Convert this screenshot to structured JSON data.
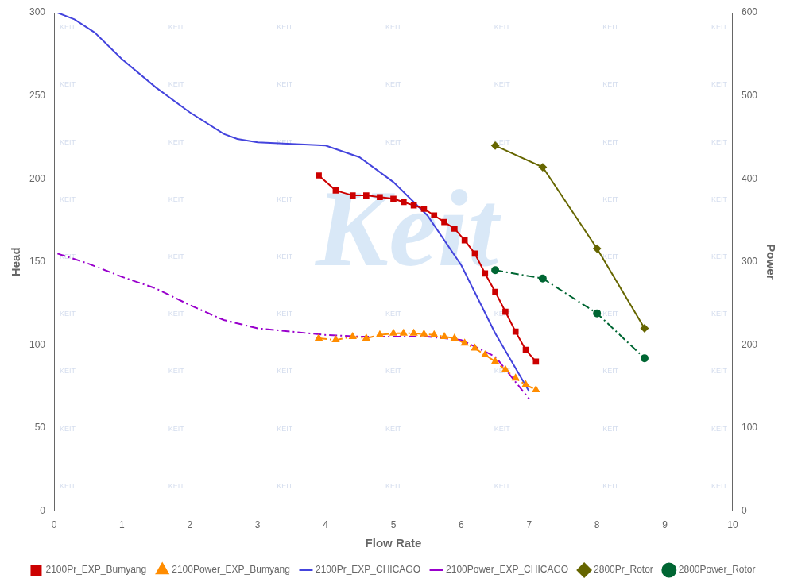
{
  "chart_data": {
    "type": "line",
    "xlabel": "Flow Rate",
    "ylabel": "Head",
    "y2label": "Power",
    "xlim": [
      0,
      10
    ],
    "xticks": [
      0,
      1,
      2,
      3,
      4,
      5,
      6,
      7,
      8,
      9,
      10
    ],
    "ylim": [
      0,
      300
    ],
    "yticks": [
      0,
      50,
      100,
      150,
      200,
      250,
      300
    ],
    "y2lim": [
      0,
      600
    ],
    "y2ticks": [
      0,
      100,
      200,
      300,
      400,
      500,
      600
    ],
    "grid": false,
    "legend": "bottom",
    "annotations": [
      "Keit",
      "KEIT"
    ],
    "series": [
      {
        "name": "2100Pr_EXP_Bumyang",
        "color": "#CC0000",
        "marker": "square",
        "line_style": "solid",
        "axis": "y",
        "x": [
          3.9,
          4.15,
          4.4,
          4.6,
          4.8,
          5.0,
          5.15,
          5.3,
          5.45,
          5.6,
          5.75,
          5.9,
          6.05,
          6.2,
          6.35,
          6.5,
          6.65,
          6.8,
          6.95,
          7.1
        ],
        "values": [
          202,
          193,
          190,
          190,
          189,
          188,
          186,
          184,
          182,
          178,
          174,
          170,
          163,
          155,
          143,
          132,
          120,
          108,
          97,
          90
        ]
      },
      {
        "name": "2100Power_EXP_Bumyang",
        "color": "#FF8C00",
        "marker": "triangle",
        "line_style": "dashdot",
        "axis": "y2",
        "x": [
          3.9,
          4.15,
          4.4,
          4.6,
          4.8,
          5.0,
          5.15,
          5.3,
          5.45,
          5.6,
          5.75,
          5.9,
          6.05,
          6.2,
          6.35,
          6.5,
          6.65,
          6.8,
          6.95,
          7.1
        ],
        "values": [
          208,
          206,
          210,
          208,
          212,
          214,
          214,
          214,
          213,
          212,
          210,
          208,
          202,
          196,
          188,
          180,
          170,
          160,
          152,
          146
        ]
      },
      {
        "name": "2100Pr_EXP_CHICAGO",
        "color": "#4444DD",
        "marker": "none",
        "line_style": "solid",
        "axis": "y",
        "x": [
          0.05,
          0.3,
          0.6,
          1.0,
          1.5,
          2.0,
          2.5,
          2.7,
          3.0,
          3.5,
          4.0,
          4.5,
          5.0,
          5.5,
          6.0,
          6.5,
          7.0
        ],
        "values": [
          300,
          296,
          288,
          272,
          255,
          240,
          227,
          224,
          222,
          221,
          220,
          213,
          198,
          178,
          148,
          107,
          72
        ]
      },
      {
        "name": "2100Power_EXP_CHICAGO",
        "color": "#9900CC",
        "marker": "none",
        "line_style": "dashdot",
        "axis": "y2",
        "x": [
          0.05,
          0.5,
          1.0,
          1.5,
          2.0,
          2.5,
          3.0,
          3.5,
          4.0,
          4.5,
          5.0,
          5.5,
          6.0,
          6.5,
          7.0
        ],
        "values": [
          310,
          298,
          282,
          268,
          248,
          230,
          220,
          216,
          212,
          210,
          210,
          210,
          206,
          186,
          135
        ]
      },
      {
        "name": "2800Pr_Rotor",
        "color": "#666600",
        "marker": "diamond",
        "line_style": "solid",
        "axis": "y",
        "x": [
          6.5,
          7.2,
          8.0,
          8.7
        ],
        "values": [
          220,
          207,
          158,
          110
        ]
      },
      {
        "name": "2800Power_Rotor",
        "color": "#006633",
        "marker": "circle",
        "line_style": "dashdot",
        "axis": "y2",
        "x": [
          6.5,
          7.2,
          8.0,
          8.7
        ],
        "values": [
          290,
          280,
          238,
          184
        ]
      }
    ]
  }
}
